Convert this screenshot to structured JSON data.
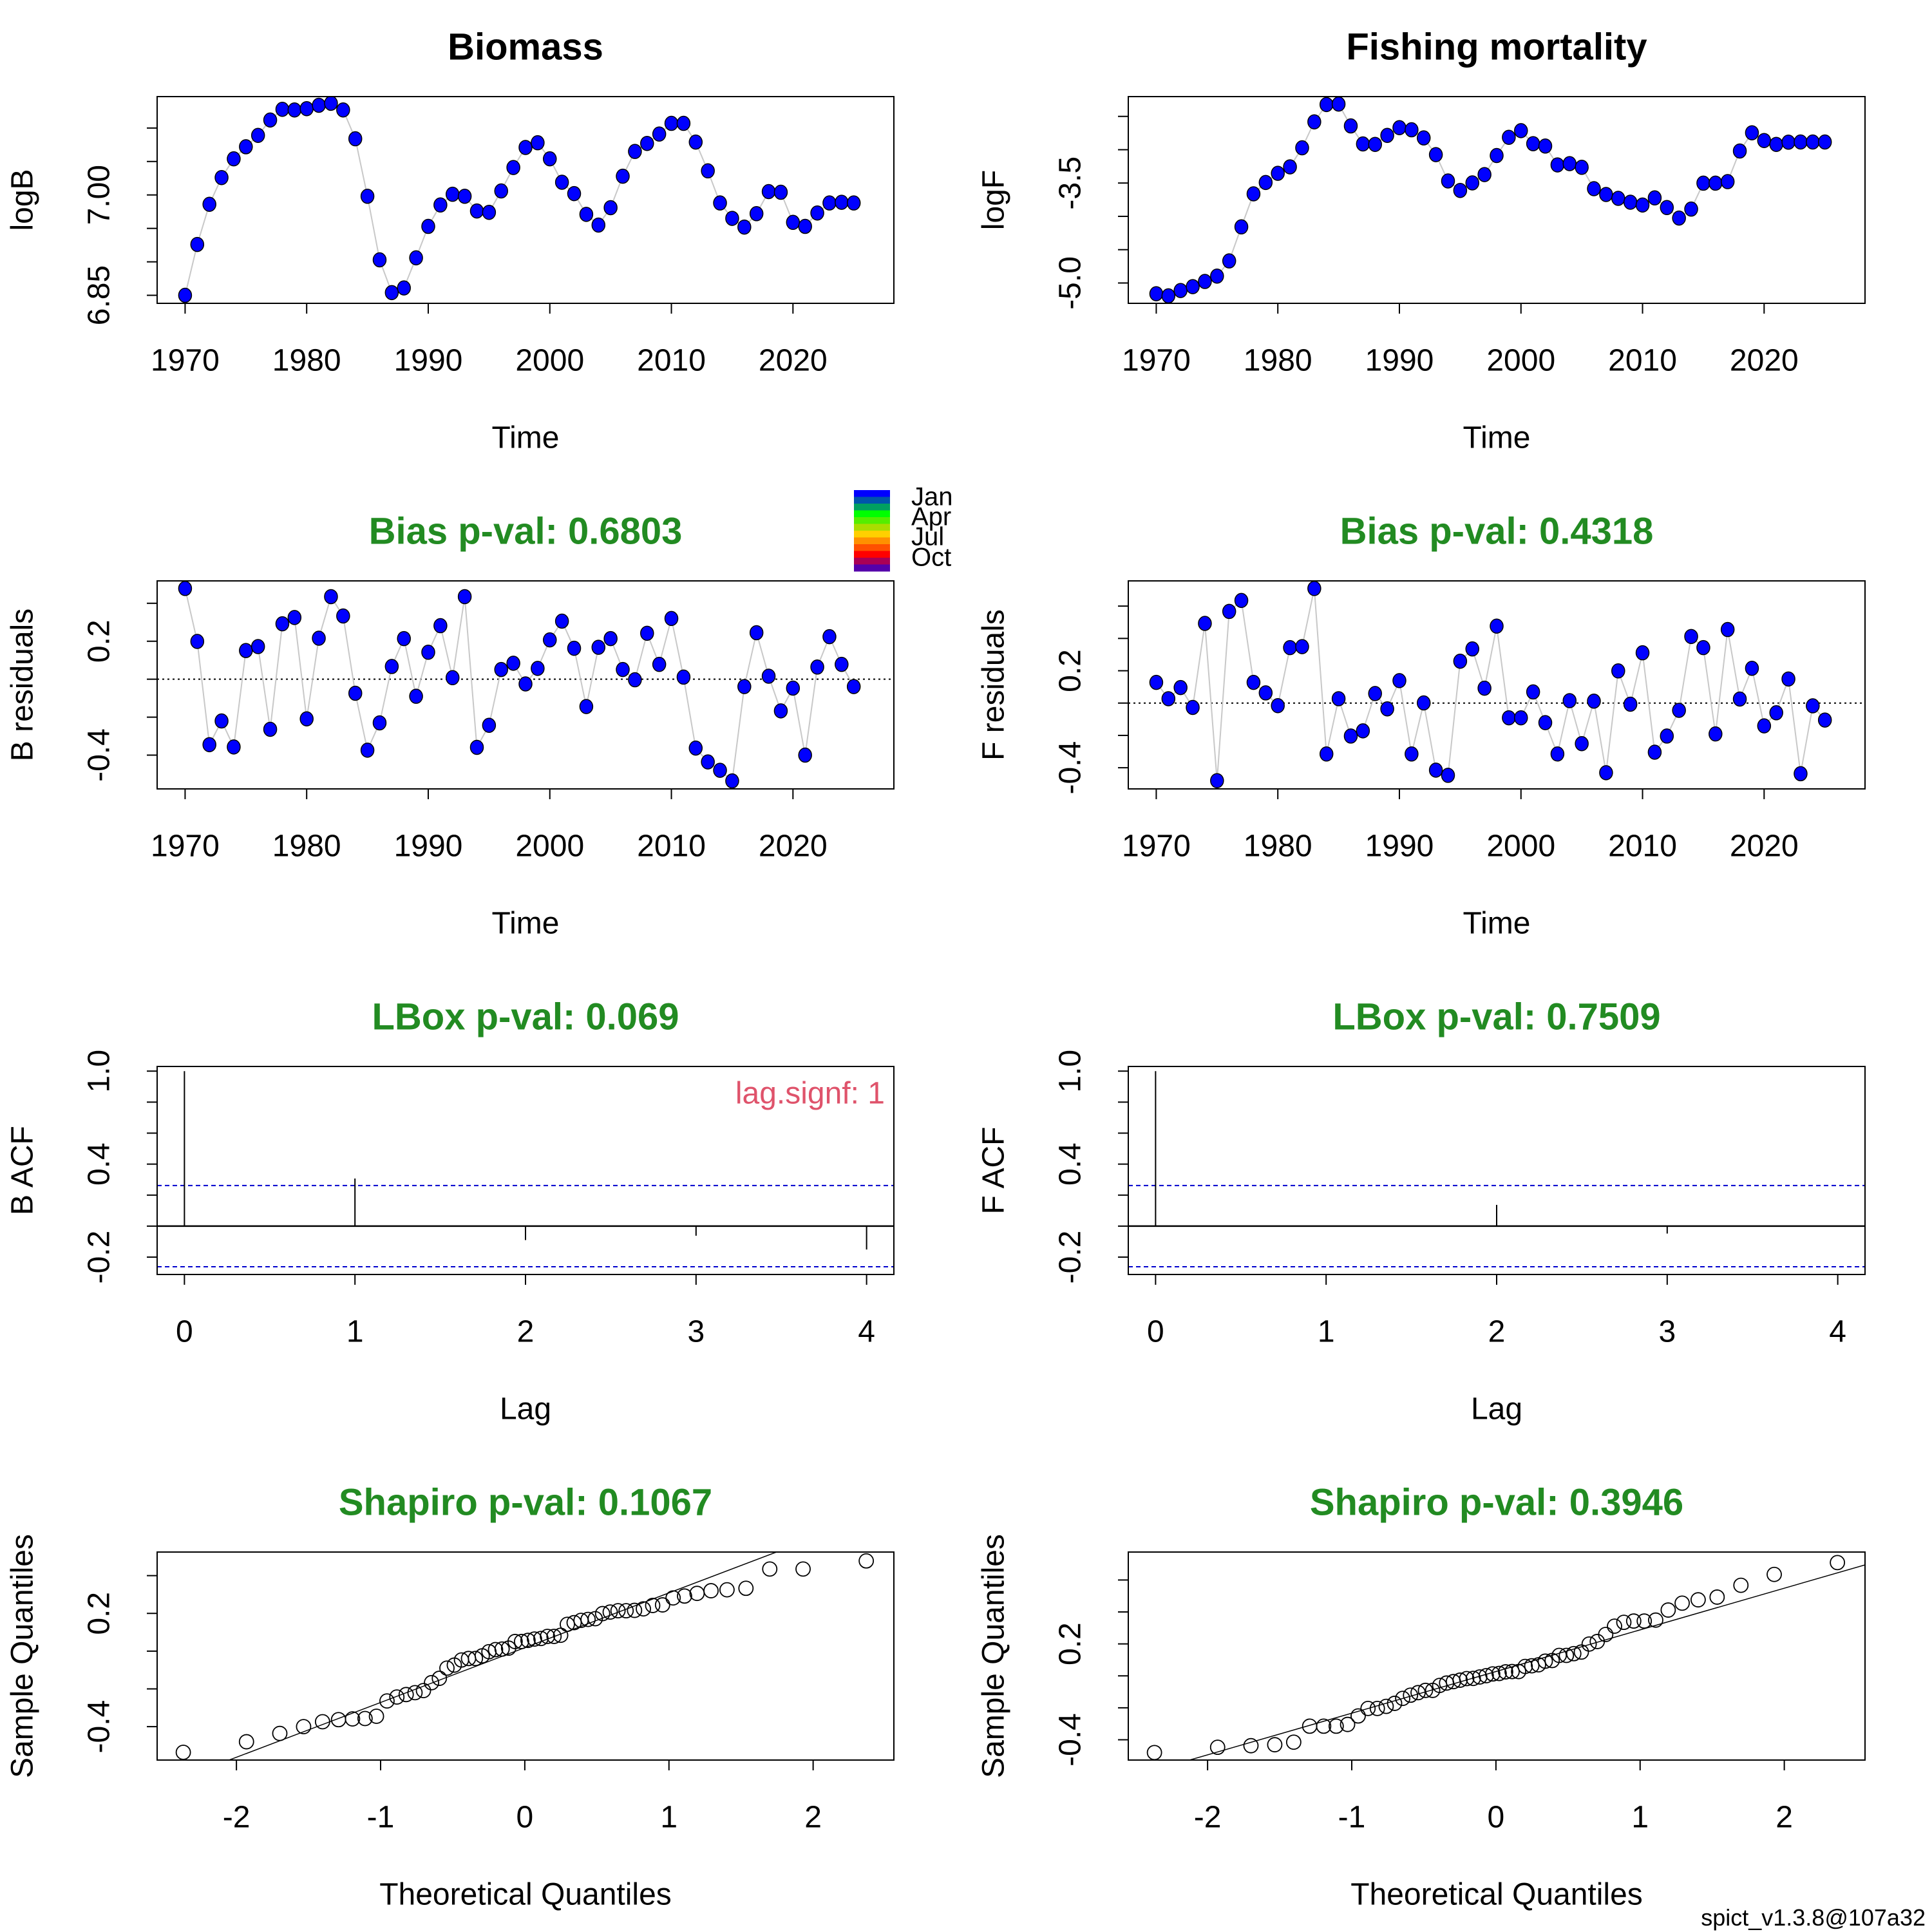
{
  "footer": "spict_v1.3.8@107a32",
  "chart_data": [
    {
      "type": "line",
      "title": "Biomass",
      "xlabel": "Time",
      "ylabel": "logB",
      "xlim": [
        1967.7,
        2028.3
      ],
      "ylim": [
        6.838,
        7.147
      ],
      "xticks": [
        1970,
        1980,
        1990,
        2000,
        2010,
        2020
      ],
      "xticklabels": [
        "1970",
        "1980",
        "1990",
        "2000",
        "2010",
        "2020"
      ],
      "yticks": [
        6.85,
        6.9,
        6.95,
        7.0,
        7.05,
        7.1
      ],
      "yticklabels": [
        "6.85",
        "7.00"
      ],
      "point_color": "#0000FF",
      "x": [
        1970,
        1971,
        1972,
        1973,
        1974,
        1975,
        1976,
        1977,
        1978,
        1979,
        1980,
        1981,
        1982,
        1983,
        1984,
        1985,
        1986,
        1987,
        1988,
        1989,
        1990,
        1991,
        1992,
        1993,
        1994,
        1995,
        1996,
        1997,
        1998,
        1999,
        2000,
        2001,
        2002,
        2003,
        2004,
        2005,
        2006,
        2007,
        2008,
        2009,
        2010,
        2011,
        2012,
        2013,
        2014,
        2015,
        2016,
        2017,
        2018,
        2019,
        2020,
        2021,
        2022,
        2023,
        2024,
        2025
      ],
      "y": [
        6.85,
        6.926,
        6.986,
        7.026,
        7.054,
        7.072,
        7.089,
        7.112,
        7.128,
        7.127,
        7.129,
        7.134,
        7.137,
        7.127,
        7.084,
        6.998,
        6.903,
        6.854,
        6.861,
        6.906,
        6.953,
        6.985,
        7.001,
        6.998,
        6.976,
        6.974,
        7.006,
        7.041,
        7.071,
        7.078,
        7.054,
        7.019,
        7.002,
        6.971,
        6.955,
        6.981,
        7.028,
        7.065,
        7.077,
        7.091,
        7.107,
        7.107,
        7.079,
        7.036,
        6.988,
        6.965,
        6.952,
        6.972,
        7.005,
        7.004,
        6.959,
        6.953,
        6.973,
        6.988,
        6.989,
        6.988
      ]
    },
    {
      "type": "line",
      "title": "Fishing mortality",
      "xlabel": "Time",
      "ylabel": "logF",
      "xlim": [
        1967.7,
        2028.3
      ],
      "ylim": [
        -5.305,
        -2.203
      ],
      "xticks": [
        1970,
        1980,
        1990,
        2000,
        2010,
        2020
      ],
      "xticklabels": [
        "1970",
        "1980",
        "1990",
        "2000",
        "2010",
        "2020"
      ],
      "yticks": [
        -5.0,
        -4.5,
        -4.0,
        -3.5,
        -3.0,
        -2.5
      ],
      "yticklabels": [
        "-5.0",
        "-3.5"
      ],
      "point_color": "#0000FF",
      "x": [
        1970,
        1971,
        1972,
        1973,
        1974,
        1975,
        1976,
        1977,
        1978,
        1979,
        1980,
        1981,
        1982,
        1983,
        1984,
        1985,
        1986,
        1987,
        1988,
        1989,
        1990,
        1991,
        1992,
        1993,
        1994,
        1995,
        1996,
        1997,
        1998,
        1999,
        2000,
        2001,
        2002,
        2003,
        2004,
        2005,
        2006,
        2007,
        2008,
        2009,
        2010,
        2011,
        2012,
        2013,
        2014,
        2015,
        2016,
        2017,
        2018,
        2019,
        2020,
        2021,
        2022,
        2023,
        2024,
        2025
      ],
      "y": [
        -5.161,
        -5.193,
        -5.113,
        -5.055,
        -4.977,
        -4.897,
        -4.669,
        -4.158,
        -3.662,
        -3.492,
        -3.354,
        -3.257,
        -2.971,
        -2.582,
        -2.322,
        -2.315,
        -2.643,
        -2.913,
        -2.92,
        -2.785,
        -2.669,
        -2.701,
        -2.823,
        -3.074,
        -3.469,
        -3.611,
        -3.498,
        -3.373,
        -3.087,
        -2.814,
        -2.714,
        -2.91,
        -2.945,
        -3.228,
        -3.209,
        -3.264,
        -3.585,
        -3.672,
        -3.73,
        -3.788,
        -3.83,
        -3.723,
        -3.868,
        -4.026,
        -3.891,
        -3.502,
        -3.502,
        -3.479,
        -3.019,
        -2.746,
        -2.862,
        -2.92,
        -2.887,
        -2.884,
        -2.884,
        -2.884
      ]
    },
    {
      "type": "scatter",
      "title": "Bias p-val: 0.6803",
      "title_color": "#228B22",
      "xlabel": "Time",
      "ylabel": "B residuals",
      "xlim": [
        1967.7,
        2028.3
      ],
      "ylim": [
        -0.578,
        0.518
      ],
      "xticks": [
        1970,
        1980,
        1990,
        2000,
        2010,
        2020
      ],
      "xticklabels": [
        "1970",
        "1980",
        "1990",
        "2000",
        "2010",
        "2020"
      ],
      "yticks": [
        -0.4,
        -0.2,
        0,
        0.2,
        0.4
      ],
      "yticklabels": [
        "0.2",
        "-0.4"
      ],
      "zero_line": true,
      "point_color": "#0000FF",
      "legend": {
        "labels": [
          "Jan",
          "Apr",
          "Jul",
          "Oct"
        ],
        "colors": [
          "#0000FF",
          "#0055AA",
          "#00A060",
          "#00FF00",
          "#55EE00",
          "#AADD00",
          "#FFD000",
          "#FF9000",
          "#FF5000",
          "#FF0000",
          "#AA0055",
          "#5500AA"
        ]
      },
      "x": [
        1970,
        1971,
        1972,
        1973,
        1974,
        1975,
        1976,
        1977,
        1978,
        1979,
        1980,
        1981,
        1982,
        1983,
        1984,
        1985,
        1986,
        1987,
        1988,
        1989,
        1990,
        1991,
        1992,
        1993,
        1994,
        1995,
        1996,
        1997,
        1998,
        1999,
        2000,
        2001,
        2002,
        2003,
        2004,
        2005,
        2006,
        2007,
        2008,
        2009,
        2010,
        2011,
        2012,
        2013,
        2014,
        2015,
        2016,
        2017,
        2018,
        2019,
        2020,
        2021,
        2022,
        2023,
        2024,
        2025
      ],
      "y": [
        0.478,
        0.199,
        -0.345,
        -0.22,
        -0.357,
        0.151,
        0.172,
        -0.264,
        0.292,
        0.325,
        -0.209,
        0.216,
        0.435,
        0.333,
        -0.074,
        -0.374,
        -0.23,
        0.067,
        0.214,
        -0.09,
        0.142,
        0.282,
        0.008,
        0.435,
        -0.359,
        -0.243,
        0.051,
        0.084,
        -0.025,
        0.057,
        0.207,
        0.306,
        0.163,
        -0.144,
        0.168,
        0.214,
        0.051,
        -0.003,
        0.242,
        0.078,
        0.32,
        0.011,
        -0.363,
        -0.436,
        -0.48,
        -0.536,
        -0.039,
        0.245,
        0.016,
        -0.167,
        -0.047,
        -0.4,
        0.064,
        0.224,
        0.078,
        -0.039
      ]
    },
    {
      "type": "scatter",
      "title": "Bias p-val: 0.4318",
      "title_color": "#228B22",
      "xlabel": "Time",
      "ylabel": "F residuals",
      "xlim": [
        1967.7,
        2028.3
      ],
      "ylim": [
        -0.531,
        0.756
      ],
      "xticks": [
        1970,
        1980,
        1990,
        2000,
        2010,
        2020
      ],
      "xticklabels": [
        "1970",
        "1980",
        "1990",
        "2000",
        "2010",
        "2020"
      ],
      "yticks": [
        -0.4,
        -0.2,
        0,
        0.2,
        0.4,
        0.6
      ],
      "yticklabels": [
        "0.2",
        "-0.4"
      ],
      "zero_line": true,
      "point_color": "#0000FF",
      "x": [
        1970,
        1971,
        1972,
        1973,
        1974,
        1975,
        1976,
        1977,
        1978,
        1979,
        1980,
        1981,
        1982,
        1983,
        1984,
        1985,
        1986,
        1987,
        1988,
        1989,
        1990,
        1991,
        1992,
        1993,
        1994,
        1995,
        1996,
        1997,
        1998,
        1999,
        2000,
        2001,
        2002,
        2003,
        2004,
        2005,
        2006,
        2007,
        2008,
        2009,
        2010,
        2011,
        2012,
        2013,
        2014,
        2015,
        2016,
        2017,
        2018,
        2019,
        2020,
        2021,
        2022,
        2023,
        2024,
        2025
      ],
      "y": [
        0.128,
        0.027,
        0.096,
        -0.027,
        0.493,
        -0.48,
        0.567,
        0.635,
        0.128,
        0.063,
        -0.016,
        0.343,
        0.349,
        0.709,
        -0.315,
        0.027,
        -0.204,
        -0.172,
        0.059,
        -0.036,
        0.139,
        -0.315,
        0.001,
        -0.415,
        -0.447,
        0.259,
        0.335,
        0.092,
        0.476,
        -0.091,
        -0.091,
        0.069,
        -0.121,
        -0.315,
        0.015,
        -0.251,
        0.012,
        -0.431,
        0.199,
        -0.007,
        0.311,
        -0.304,
        -0.204,
        -0.045,
        0.412,
        0.343,
        -0.191,
        0.455,
        0.025,
        0.215,
        -0.141,
        -0.06,
        0.149,
        -0.437,
        -0.017,
        -0.105
      ]
    },
    {
      "type": "bar",
      "title": "LBox p-val: 0.069",
      "title_color": "#228B22",
      "xlabel": "Lag",
      "ylabel": "B ACF",
      "xlim": [
        -0.16,
        4.16
      ],
      "ylim": [
        -0.312,
        1.03
      ],
      "xticks": [
        0,
        1,
        2,
        3,
        4
      ],
      "xticklabels": [
        "0",
        "1",
        "2",
        "3",
        "4"
      ],
      "yticks": [
        -0.2,
        0,
        0.2,
        0.4,
        0.6,
        0.8,
        1.0
      ],
      "yticklabels": [
        "1.0",
        "0.4",
        "-0.2"
      ],
      "lag": [
        0,
        1,
        2,
        3,
        4
      ],
      "acf": [
        1.0,
        0.307,
        -0.09,
        -0.062,
        -0.151
      ],
      "conf_limit": 0.262,
      "conf_color": "#0000CD",
      "annotation": "lag.signf: 1",
      "annotation_color": "#DF536B"
    },
    {
      "type": "bar",
      "title": "LBox p-val: 0.7509",
      "title_color": "#228B22",
      "xlabel": "Lag",
      "ylabel": "F ACF",
      "xlim": [
        -0.16,
        4.16
      ],
      "ylim": [
        -0.312,
        1.03
      ],
      "xticks": [
        0,
        1,
        2,
        3,
        4
      ],
      "xticklabels": [
        "0",
        "1",
        "2",
        "3",
        "4"
      ],
      "yticks": [
        -0.2,
        0,
        0.2,
        0.4,
        0.6,
        0.8,
        1.0
      ],
      "yticklabels": [
        "1.0",
        "0.4",
        "-0.2"
      ],
      "lag": [
        0,
        1,
        2,
        3,
        4
      ],
      "acf": [
        1.0,
        -0.004,
        0.137,
        -0.048,
        -0.003
      ],
      "conf_limit": 0.262,
      "conf_color": "#0000CD"
    },
    {
      "type": "scatter",
      "title": "Shapiro p-val: 0.1067",
      "title_color": "#228B22",
      "xlabel": "Theoretical Quantiles",
      "ylabel": "Sample Quantiles",
      "xlim": [
        -2.55,
        2.56
      ],
      "ylim": [
        -0.577,
        0.525
      ],
      "xticks": [
        -2,
        -1,
        0,
        1,
        2
      ],
      "xticklabels": [
        "-2",
        "-1",
        "0",
        "1",
        "2"
      ],
      "yticks": [
        -0.4,
        -0.2,
        0,
        0.2,
        0.4
      ],
      "yticklabels": [
        "0.2",
        "-0.4"
      ],
      "sample_values": [
        0.478,
        0.199,
        -0.345,
        -0.22,
        -0.357,
        0.151,
        0.172,
        -0.264,
        0.292,
        0.325,
        -0.209,
        0.216,
        0.435,
        0.333,
        -0.074,
        -0.374,
        -0.23,
        0.067,
        0.214,
        -0.09,
        0.142,
        0.282,
        0.008,
        0.435,
        -0.359,
        -0.243,
        0.051,
        0.084,
        -0.025,
        0.057,
        0.207,
        0.306,
        0.163,
        -0.144,
        0.168,
        0.214,
        0.051,
        -0.003,
        0.242,
        0.078,
        0.32,
        0.011,
        -0.363,
        -0.436,
        -0.48,
        -0.536,
        -0.039,
        0.245,
        0.016,
        -0.167,
        -0.047,
        -0.4,
        0.064,
        0.224,
        0.078,
        -0.039
      ]
    },
    {
      "type": "scatter",
      "title": "Shapiro p-val: 0.3946",
      "title_color": "#228B22",
      "xlabel": "Theoretical Quantiles",
      "ylabel": "Sample Quantiles",
      "xlim": [
        -2.55,
        2.56
      ],
      "ylim": [
        -0.527,
        0.775
      ],
      "xticks": [
        -2,
        -1,
        0,
        1,
        2
      ],
      "xticklabels": [
        "-2",
        "-1",
        "0",
        "1",
        "2"
      ],
      "yticks": [
        -0.4,
        -0.2,
        0,
        0.2,
        0.4,
        0.6
      ],
      "yticklabels": [
        "0.2",
        "-0.4"
      ],
      "sample_values": [
        0.128,
        0.027,
        0.096,
        -0.027,
        0.493,
        -0.48,
        0.567,
        0.635,
        0.128,
        0.063,
        -0.016,
        0.343,
        0.349,
        0.709,
        -0.315,
        0.027,
        -0.204,
        -0.172,
        0.059,
        -0.036,
        0.139,
        -0.315,
        0.001,
        -0.415,
        -0.447,
        0.259,
        0.335,
        0.092,
        0.476,
        -0.091,
        -0.091,
        0.069,
        -0.121,
        -0.315,
        0.015,
        -0.251,
        0.012,
        -0.431,
        0.199,
        -0.007,
        0.311,
        -0.304,
        -0.204,
        -0.045,
        0.412,
        0.343,
        -0.191,
        0.455,
        0.025,
        0.215,
        -0.141,
        -0.06,
        0.149,
        -0.437,
        -0.017,
        -0.105
      ]
    }
  ]
}
